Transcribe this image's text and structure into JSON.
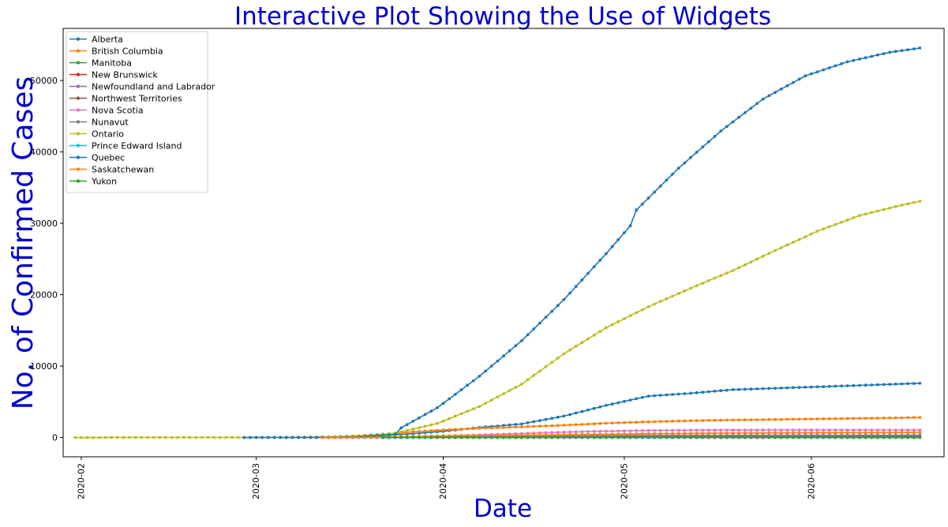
{
  "chart_data": {
    "type": "line",
    "title": "Interactive Plot Showing the Use of Widgets",
    "xlabel": "Date",
    "ylabel": "No. of Confirmed Cases",
    "xlim": [
      "2020-01-29",
      "2020-06-23"
    ],
    "ylim": [
      -2700,
      57300
    ],
    "x_ticks": [
      "2020-02",
      "2020-03",
      "2020-04",
      "2020-05",
      "2020-06"
    ],
    "y_ticks": [
      0,
      10000,
      20000,
      30000,
      40000,
      50000
    ],
    "grid": false,
    "legend_position": "top-left",
    "marker": "dot",
    "series": [
      {
        "name": "Alberta",
        "color": "#1f77b4",
        "start": "2020-03-05",
        "end": "2020-06-19",
        "points": [
          [
            "2020-03-05",
            1
          ],
          [
            "2020-03-13",
            10
          ],
          [
            "2020-03-20",
            150
          ],
          [
            "2020-03-27",
            550
          ],
          [
            "2020-04-01",
            870
          ],
          [
            "2020-04-07",
            1400
          ],
          [
            "2020-04-14",
            1900
          ],
          [
            "2020-04-21",
            3000
          ],
          [
            "2020-04-28",
            4500
          ],
          [
            "2020-05-05",
            5800
          ],
          [
            "2020-05-12",
            6200
          ],
          [
            "2020-05-19",
            6700
          ],
          [
            "2020-05-26",
            6900
          ],
          [
            "2020-06-02",
            7100
          ],
          [
            "2020-06-09",
            7300
          ],
          [
            "2020-06-19",
            7600
          ]
        ]
      },
      {
        "name": "British Columbia",
        "color": "#ff7f0e",
        "start": "2020-03-05",
        "end": "2020-06-19",
        "points": [
          [
            "2020-03-05",
            20
          ],
          [
            "2020-03-13",
            60
          ],
          [
            "2020-03-20",
            270
          ],
          [
            "2020-03-27",
            800
          ],
          [
            "2020-04-01",
            1060
          ],
          [
            "2020-04-07",
            1290
          ],
          [
            "2020-04-14",
            1490
          ],
          [
            "2020-04-21",
            1720
          ],
          [
            "2020-04-28",
            2000
          ],
          [
            "2020-05-05",
            2200
          ],
          [
            "2020-05-12",
            2350
          ],
          [
            "2020-05-19",
            2450
          ],
          [
            "2020-05-26",
            2530
          ],
          [
            "2020-06-02",
            2600
          ],
          [
            "2020-06-09",
            2680
          ],
          [
            "2020-06-19",
            2800
          ]
        ]
      },
      {
        "name": "Manitoba",
        "color": "#2ca02c",
        "start": "2020-03-12",
        "end": "2020-06-19",
        "points": [
          [
            "2020-03-12",
            1
          ],
          [
            "2020-03-20",
            20
          ],
          [
            "2020-03-27",
            60
          ],
          [
            "2020-04-03",
            180
          ],
          [
            "2020-04-10",
            240
          ],
          [
            "2020-04-20",
            260
          ],
          [
            "2020-05-05",
            280
          ],
          [
            "2020-05-20",
            290
          ],
          [
            "2020-06-05",
            300
          ],
          [
            "2020-06-19",
            305
          ]
        ]
      },
      {
        "name": "New Brunswick",
        "color": "#d62728",
        "start": "2020-03-12",
        "end": "2020-06-19",
        "points": [
          [
            "2020-03-12",
            1
          ],
          [
            "2020-03-20",
            10
          ],
          [
            "2020-03-27",
            40
          ],
          [
            "2020-04-03",
            100
          ],
          [
            "2020-04-15",
            118
          ],
          [
            "2020-05-05",
            120
          ],
          [
            "2020-06-01",
            130
          ],
          [
            "2020-06-19",
            160
          ]
        ]
      },
      {
        "name": "Newfoundland and Labrador",
        "color": "#9467bd",
        "start": "2020-03-14",
        "end": "2020-06-19",
        "points": [
          [
            "2020-03-14",
            1
          ],
          [
            "2020-03-20",
            10
          ],
          [
            "2020-03-27",
            120
          ],
          [
            "2020-04-03",
            200
          ],
          [
            "2020-04-15",
            240
          ],
          [
            "2020-05-05",
            260
          ],
          [
            "2020-06-19",
            262
          ]
        ]
      },
      {
        "name": "Northwest Territories",
        "color": "#8c564b",
        "start": "2020-03-21",
        "end": "2020-06-19",
        "points": [
          [
            "2020-03-21",
            1
          ],
          [
            "2020-04-05",
            5
          ],
          [
            "2020-06-19",
            5
          ]
        ]
      },
      {
        "name": "Nova Scotia",
        "color": "#e377c2",
        "start": "2020-03-15",
        "end": "2020-06-19",
        "points": [
          [
            "2020-03-15",
            1
          ],
          [
            "2020-03-22",
            30
          ],
          [
            "2020-03-29",
            150
          ],
          [
            "2020-04-05",
            300
          ],
          [
            "2020-04-12",
            500
          ],
          [
            "2020-04-19",
            700
          ],
          [
            "2020-04-26",
            860
          ],
          [
            "2020-05-05",
            980
          ],
          [
            "2020-05-15",
            1040
          ],
          [
            "2020-05-30",
            1060
          ],
          [
            "2020-06-19",
            1062
          ]
        ]
      },
      {
        "name": "Nunavut",
        "color": "#7f7f7f",
        "start": "2020-03-15",
        "end": "2020-06-19",
        "points": [
          [
            "2020-03-15",
            0
          ],
          [
            "2020-06-19",
            0
          ]
        ]
      },
      {
        "name": "Ontario",
        "color": "#bcbd22",
        "start": "2020-01-31",
        "end": "2020-06-19",
        "points": [
          [
            "2020-01-31",
            1
          ],
          [
            "2020-02-25",
            4
          ],
          [
            "2020-03-01",
            15
          ],
          [
            "2020-03-10",
            36
          ],
          [
            "2020-03-17",
            180
          ],
          [
            "2020-03-24",
            600
          ],
          [
            "2020-03-31",
            1966
          ],
          [
            "2020-04-07",
            4350
          ],
          [
            "2020-04-14",
            7470
          ],
          [
            "2020-04-21",
            11735
          ],
          [
            "2020-04-28",
            15381
          ],
          [
            "2020-05-05",
            18310
          ],
          [
            "2020-05-12",
            20907
          ],
          [
            "2020-05-19",
            23384
          ],
          [
            "2020-05-26",
            26191
          ],
          [
            "2020-06-02",
            28893
          ],
          [
            "2020-06-09",
            31090
          ],
          [
            "2020-06-16",
            32550
          ],
          [
            "2020-06-19",
            33100
          ]
        ]
      },
      {
        "name": "Prince Edward Island",
        "color": "#17becf",
        "start": "2020-03-15",
        "end": "2020-06-19",
        "points": [
          [
            "2020-03-15",
            1
          ],
          [
            "2020-04-01",
            21
          ],
          [
            "2020-04-15",
            26
          ],
          [
            "2020-06-19",
            27
          ]
        ]
      },
      {
        "name": "Quebec",
        "color": "#1f77b4",
        "start": "2020-02-28",
        "end": "2020-06-19",
        "points": [
          [
            "2020-02-28",
            1
          ],
          [
            "2020-03-10",
            5
          ],
          [
            "2020-03-17",
            80
          ],
          [
            "2020-03-24",
            400
          ],
          [
            "2020-03-25",
            1340
          ],
          [
            "2020-03-31",
            4162
          ],
          [
            "2020-04-07",
            8580
          ],
          [
            "2020-04-14",
            13557
          ],
          [
            "2020-04-21",
            19319
          ],
          [
            "2020-04-28",
            25757
          ],
          [
            "2020-05-02",
            29650
          ],
          [
            "2020-05-03",
            31860
          ],
          [
            "2020-05-10",
            37721
          ],
          [
            "2020-05-17",
            42920
          ],
          [
            "2020-05-24",
            47411
          ],
          [
            "2020-05-31",
            50651
          ],
          [
            "2020-06-07",
            52624
          ],
          [
            "2020-06-14",
            53952
          ],
          [
            "2020-06-19",
            54550
          ]
        ]
      },
      {
        "name": "Saskatchewan",
        "color": "#ff7f0e",
        "start": "2020-03-12",
        "end": "2020-06-19",
        "points": [
          [
            "2020-03-12",
            1
          ],
          [
            "2020-03-20",
            20
          ],
          [
            "2020-03-27",
            130
          ],
          [
            "2020-04-03",
            250
          ],
          [
            "2020-04-15",
            310
          ],
          [
            "2020-05-05",
            530
          ],
          [
            "2020-05-20",
            620
          ],
          [
            "2020-06-05",
            660
          ],
          [
            "2020-06-19",
            700
          ]
        ]
      },
      {
        "name": "Yukon",
        "color": "#2ca02c",
        "start": "2020-03-22",
        "end": "2020-06-19",
        "points": [
          [
            "2020-03-22",
            2
          ],
          [
            "2020-04-05",
            8
          ],
          [
            "2020-04-20",
            11
          ],
          [
            "2020-06-19",
            11
          ]
        ]
      }
    ]
  }
}
